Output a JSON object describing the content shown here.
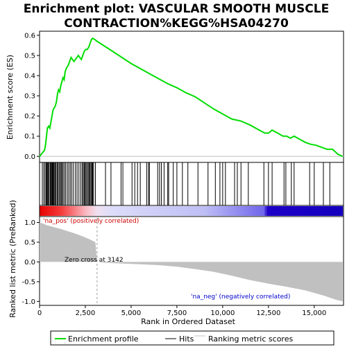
{
  "chart_data": {
    "type": "line",
    "title_line1": "Enrichment plot: VASCULAR SMOOTH MUSCLE",
    "title_line2": "CONTRACTION%KEGG%HSA04270",
    "es_ylabel": "Enrichment score (ES)",
    "metric_ylabel_line1": "Ranked list metric (PreRanked)",
    "metric_ylabel_line2": "",
    "xlabel": "Rank in Ordered Dataset",
    "x_range": [
      0,
      16600
    ],
    "es_ylim": [
      -0.03,
      0.62
    ],
    "es_ticks": [
      "0.0",
      "0.1",
      "0.2",
      "0.3",
      "0.4",
      "0.5",
      "0.6"
    ],
    "metric_ylim": [
      -1.1,
      1.15
    ],
    "metric_ticks": [
      "1.0",
      "0.5",
      "0.0",
      "-0.5",
      "-1.0"
    ],
    "x_ticks": [
      "0",
      "2,500",
      "5,000",
      "7,500",
      "10,000",
      "12,500",
      "15,000"
    ],
    "annotation_pos": "'na_pos' (positively correlated)",
    "annotation_neg": "'na_neg' (negatively correlated)",
    "zero_cross_label": "Zero cross at 3142",
    "zero_cross": 3142,
    "legend": [
      "Enrichment profile",
      "Hits",
      "Ranking metric scores"
    ],
    "colors": {
      "enrichment": "#00dd00",
      "hits": "#000000",
      "metric": "#c0c0c0",
      "pos_band": "#ff0000",
      "neg_band": "#0000ff"
    },
    "es_points": [
      [
        0,
        0.0
      ],
      [
        90,
        0.01
      ],
      [
        180,
        0.02
      ],
      [
        270,
        0.03
      ],
      [
        330,
        0.06
      ],
      [
        380,
        0.1
      ],
      [
        430,
        0.14
      ],
      [
        500,
        0.15
      ],
      [
        560,
        0.14
      ],
      [
        620,
        0.17
      ],
      [
        680,
        0.2
      ],
      [
        740,
        0.23
      ],
      [
        800,
        0.24
      ],
      [
        860,
        0.25
      ],
      [
        920,
        0.27
      ],
      [
        980,
        0.31
      ],
      [
        1040,
        0.33
      ],
      [
        1100,
        0.32
      ],
      [
        1160,
        0.35
      ],
      [
        1220,
        0.37
      ],
      [
        1280,
        0.39
      ],
      [
        1340,
        0.38
      ],
      [
        1400,
        0.42
      ],
      [
        1480,
        0.44
      ],
      [
        1560,
        0.45
      ],
      [
        1640,
        0.47
      ],
      [
        1720,
        0.49
      ],
      [
        1800,
        0.48
      ],
      [
        1880,
        0.47
      ],
      [
        1960,
        0.48
      ],
      [
        2040,
        0.49
      ],
      [
        2120,
        0.5
      ],
      [
        2200,
        0.49
      ],
      [
        2280,
        0.48
      ],
      [
        2360,
        0.5
      ],
      [
        2440,
        0.52
      ],
      [
        2520,
        0.53
      ],
      [
        2600,
        0.53
      ],
      [
        2680,
        0.54
      ],
      [
        2760,
        0.56
      ],
      [
        2840,
        0.58
      ],
      [
        2900,
        0.585
      ],
      [
        3000,
        0.58
      ],
      [
        3142,
        0.57
      ],
      [
        4000,
        0.52
      ],
      [
        5000,
        0.46
      ],
      [
        6000,
        0.41
      ],
      [
        7000,
        0.36
      ],
      [
        7500,
        0.34
      ],
      [
        8000,
        0.315
      ],
      [
        8500,
        0.295
      ],
      [
        9000,
        0.265
      ],
      [
        9500,
        0.235
      ],
      [
        10000,
        0.21
      ],
      [
        10500,
        0.185
      ],
      [
        11000,
        0.175
      ],
      [
        11500,
        0.155
      ],
      [
        12000,
        0.13
      ],
      [
        12300,
        0.115
      ],
      [
        12500,
        0.115
      ],
      [
        12700,
        0.13
      ],
      [
        13000,
        0.115
      ],
      [
        13300,
        0.1
      ],
      [
        13500,
        0.1
      ],
      [
        13700,
        0.09
      ],
      [
        13900,
        0.1
      ],
      [
        14200,
        0.085
      ],
      [
        14500,
        0.07
      ],
      [
        14800,
        0.06
      ],
      [
        15100,
        0.055
      ],
      [
        15400,
        0.045
      ],
      [
        15700,
        0.035
      ],
      [
        16000,
        0.035
      ],
      [
        16300,
        0.01
      ],
      [
        16550,
        0.0
      ]
    ],
    "hit_ranks": [
      150,
      230,
      300,
      360,
      390,
      430,
      470,
      520,
      580,
      610,
      650,
      690,
      720,
      760,
      800,
      850,
      900,
      960,
      1010,
      1070,
      1130,
      1180,
      1230,
      1290,
      1360,
      1430,
      1520,
      1600,
      1680,
      1760,
      1850,
      1960,
      2050,
      2150,
      2250,
      2330,
      2390,
      2440,
      2490,
      2540,
      2600,
      2660,
      2710,
      2760,
      2810,
      2860,
      2900,
      2950,
      3050,
      3600,
      3900,
      4450,
      4550,
      5050,
      5200,
      5350,
      5500,
      5850,
      5950,
      6000,
      6450,
      6550,
      6650,
      6800,
      7000,
      7050,
      7300,
      7500,
      7800,
      8100,
      8650,
      9200,
      9600,
      9850,
      10000,
      10150,
      10650,
      10800,
      11000,
      11400,
      12250,
      12500,
      12700,
      13350,
      13450,
      13750,
      13900,
      14750,
      15000,
      15500,
      15850
    ],
    "metric_points": [
      [
        0,
        1.0
      ],
      [
        150,
        0.98
      ],
      [
        400,
        0.93
      ],
      [
        800,
        0.88
      ],
      [
        1200,
        0.83
      ],
      [
        1600,
        0.77
      ],
      [
        2000,
        0.71
      ],
      [
        2400,
        0.64
      ],
      [
        2800,
        0.56
      ],
      [
        3050,
        0.5
      ],
      [
        3142,
        0.0
      ],
      [
        3500,
        -0.02
      ],
      [
        5000,
        -0.05
      ],
      [
        6500,
        -0.08
      ],
      [
        7500,
        -0.12
      ],
      [
        8500,
        -0.18
      ],
      [
        9500,
        -0.25
      ],
      [
        10500,
        -0.35
      ],
      [
        11500,
        -0.46
      ],
      [
        12500,
        -0.55
      ],
      [
        13500,
        -0.63
      ],
      [
        14500,
        -0.72
      ],
      [
        15500,
        -0.85
      ],
      [
        16200,
        -0.96
      ],
      [
        16550,
        -1.0
      ]
    ]
  }
}
